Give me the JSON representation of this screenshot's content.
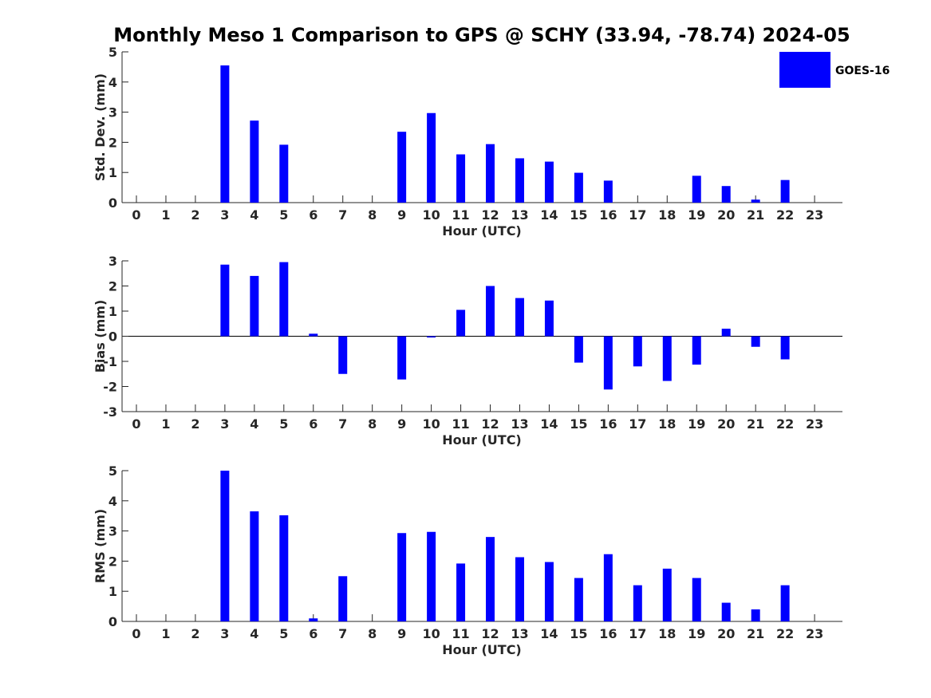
{
  "chart_data": [
    {
      "type": "bar",
      "title": "Monthly Meso 1 Comparison to GPS @ SCHY (33.94, -78.74) 2024-05",
      "xlabel": "Hour (UTC)",
      "ylabel": "Std. Dev. (mm)",
      "ylim": [
        0,
        5
      ],
      "yticks": [
        0,
        1,
        2,
        3,
        4,
        5
      ],
      "categories": [
        "0",
        "1",
        "2",
        "3",
        "4",
        "5",
        "6",
        "7",
        "8",
        "9",
        "10",
        "11",
        "12",
        "13",
        "14",
        "15",
        "16",
        "17",
        "18",
        "19",
        "20",
        "21",
        "22",
        "23"
      ],
      "series": [
        {
          "name": "GOES-16",
          "values": [
            null,
            null,
            null,
            4.55,
            2.72,
            1.92,
            null,
            null,
            null,
            2.35,
            2.97,
            1.6,
            1.94,
            1.47,
            1.36,
            0.99,
            0.73,
            null,
            null,
            0.89,
            0.55,
            0.1,
            0.75,
            null
          ]
        }
      ],
      "legend": {
        "position": "top-right",
        "entries": [
          "GOES-16"
        ]
      }
    },
    {
      "type": "bar",
      "xlabel": "Hour (UTC)",
      "ylabel": "Bias (mm)",
      "ylim": [
        -3,
        3
      ],
      "yticks": [
        -3,
        -2,
        -1,
        0,
        1,
        2,
        3
      ],
      "categories": [
        "0",
        "1",
        "2",
        "3",
        "4",
        "5",
        "6",
        "7",
        "8",
        "9",
        "10",
        "11",
        "12",
        "13",
        "14",
        "15",
        "16",
        "17",
        "18",
        "19",
        "20",
        "21",
        "22",
        "23"
      ],
      "series": [
        {
          "name": "GOES-16",
          "values": [
            null,
            null,
            null,
            2.85,
            2.4,
            2.95,
            0.1,
            -1.5,
            null,
            -1.72,
            -0.05,
            1.05,
            2.0,
            1.52,
            1.42,
            -1.05,
            -2.12,
            -1.2,
            -1.78,
            -1.13,
            0.3,
            -0.42,
            -0.92,
            null
          ]
        }
      ]
    },
    {
      "type": "bar",
      "xlabel": "Hour (UTC)",
      "ylabel": "RMS (mm)",
      "ylim": [
        0,
        5
      ],
      "yticks": [
        0,
        1,
        2,
        3,
        4,
        5
      ],
      "categories": [
        "0",
        "1",
        "2",
        "3",
        "4",
        "5",
        "6",
        "7",
        "8",
        "9",
        "10",
        "11",
        "12",
        "13",
        "14",
        "15",
        "16",
        "17",
        "18",
        "19",
        "20",
        "21",
        "22",
        "23"
      ],
      "series": [
        {
          "name": "GOES-16",
          "values": [
            null,
            null,
            null,
            5.0,
            3.65,
            3.52,
            0.1,
            1.5,
            null,
            2.93,
            2.97,
            1.92,
            2.8,
            2.13,
            1.97,
            1.44,
            2.23,
            1.2,
            1.75,
            1.44,
            0.62,
            0.4,
            1.2,
            null
          ]
        }
      ]
    }
  ],
  "colors": {
    "bar": "#0000ff",
    "axis": "#262626"
  }
}
